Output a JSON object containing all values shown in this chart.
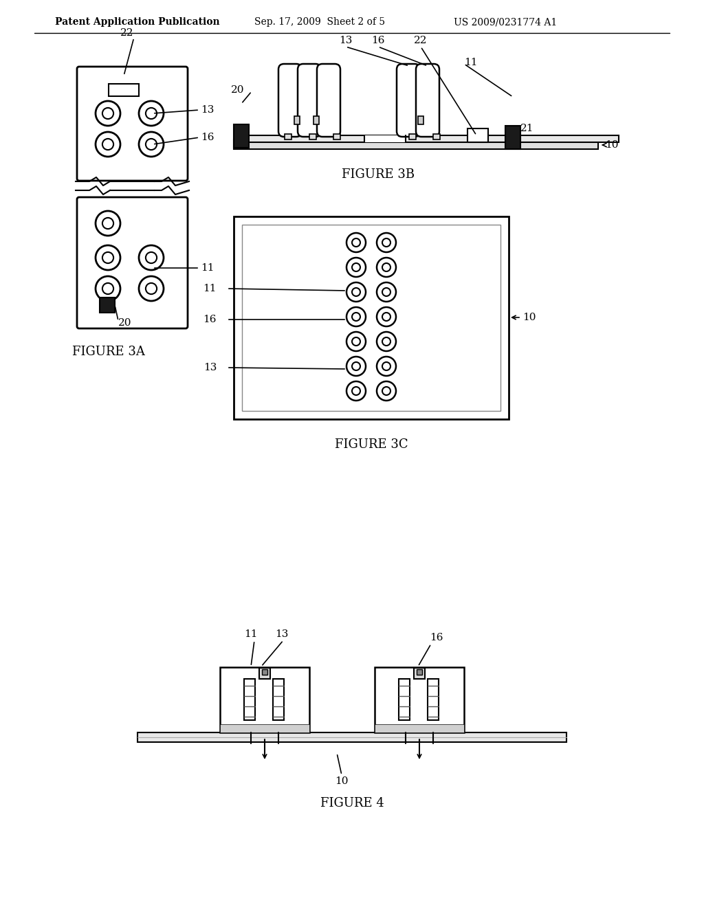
{
  "title_text": "Patent Application Publication",
  "title_date": "Sep. 17, 2009  Sheet 2 of 5",
  "title_patent": "US 2009/0231774 A1",
  "fig3a_label": "FIGURE 3A",
  "fig3b_label": "FIGURE 3B",
  "fig3c_label": "FIGURE 3C",
  "fig4_label": "FIGURE 4",
  "bg_color": "#ffffff",
  "line_color": "#000000",
  "dark_fill": "#1a1a1a",
  "gray_fill": "#888888",
  "light_gray": "#cccccc"
}
